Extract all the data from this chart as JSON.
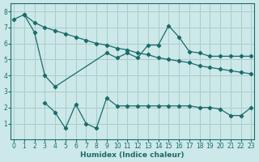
{
  "xlabel": "Humidex (Indice chaleur)",
  "bg_color": "#cce8e8",
  "grid_color": "#aacccc",
  "line_color": "#1a6b6b",
  "xlim": [
    -0.3,
    23.3
  ],
  "ylim": [
    0,
    8.5
  ],
  "yticks": [
    1,
    2,
    3,
    4,
    5,
    6,
    7,
    8
  ],
  "xticks": [
    0,
    1,
    2,
    3,
    4,
    5,
    6,
    7,
    8,
    9,
    10,
    11,
    12,
    13,
    14,
    15,
    16,
    17,
    18,
    19,
    20,
    21,
    22,
    23
  ],
  "line1_x": [
    0,
    1,
    2,
    3,
    4,
    5,
    6,
    7,
    8,
    9,
    10,
    11,
    12,
    13,
    14,
    15,
    16,
    17,
    18,
    19,
    20,
    21,
    22,
    23
  ],
  "line1_y": [
    7.5,
    7.8,
    7.3,
    7.0,
    6.8,
    6.6,
    6.4,
    6.2,
    6.0,
    5.9,
    5.7,
    5.6,
    5.4,
    5.3,
    5.1,
    5.0,
    4.9,
    4.8,
    4.6,
    4.5,
    4.4,
    4.3,
    4.2,
    4.1
  ],
  "line2_x": [
    1,
    2,
    3,
    4,
    9,
    10,
    11,
    12,
    13,
    14,
    15,
    16,
    17,
    18,
    19,
    20,
    21,
    22,
    23
  ],
  "line2_y": [
    7.8,
    6.7,
    4.0,
    3.3,
    5.4,
    5.1,
    5.4,
    5.1,
    5.9,
    5.9,
    7.1,
    6.4,
    5.5,
    5.4,
    5.2,
    5.2,
    5.2,
    5.2,
    5.2
  ],
  "line3_x": [
    3,
    4,
    5,
    6,
    7,
    8,
    9,
    10,
    11,
    12,
    13,
    14,
    15,
    16,
    17,
    18,
    19,
    20,
    21,
    22,
    23
  ],
  "line3_y": [
    2.3,
    1.7,
    0.7,
    2.2,
    1.0,
    0.7,
    2.6,
    2.1,
    2.1,
    2.1,
    2.1,
    2.1,
    2.1,
    2.1,
    2.1,
    2.0,
    2.0,
    1.9,
    1.5,
    1.5,
    2.0
  ]
}
